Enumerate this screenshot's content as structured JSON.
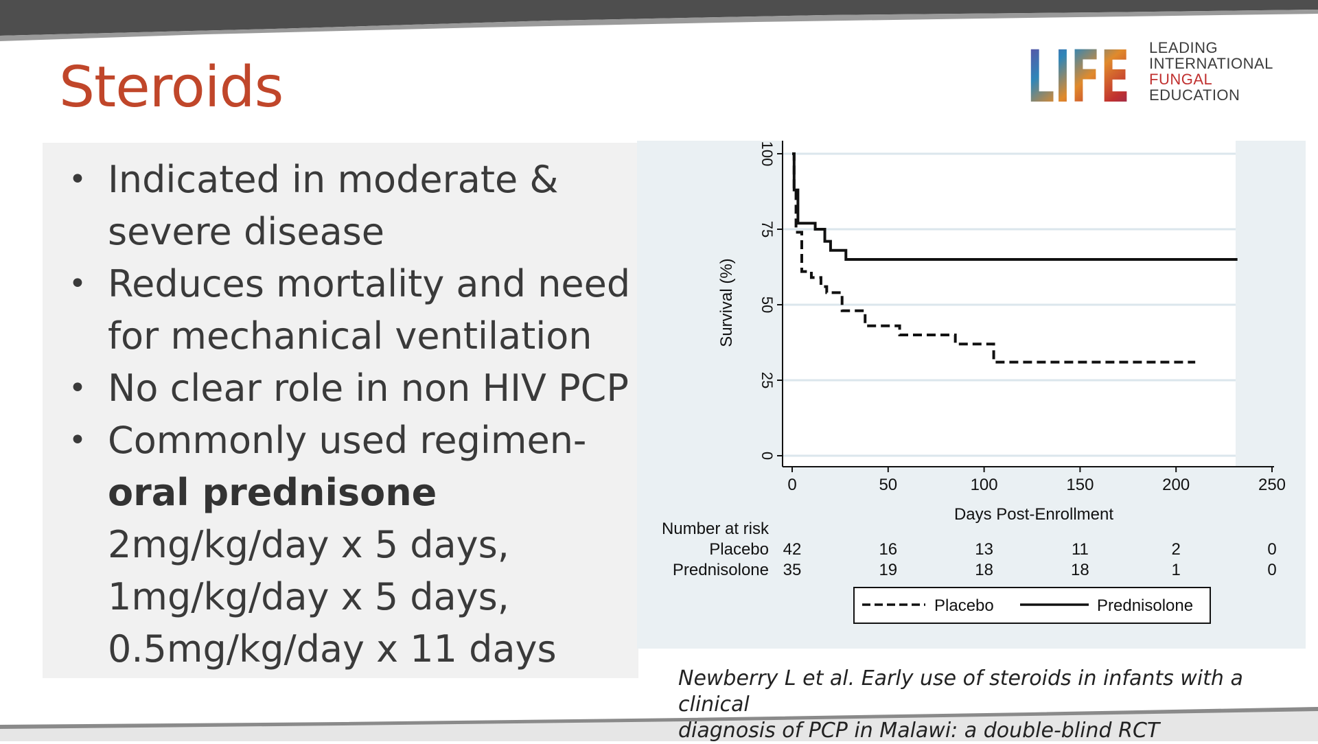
{
  "slide": {
    "title": "Steroids",
    "title_color": "#c0462a"
  },
  "logo": {
    "mark_text": "LIFE",
    "lines": [
      "LEADING",
      "INTERNATIONAL",
      "FUNGAL",
      "EDUCATION"
    ]
  },
  "bullets": [
    {
      "lines": [
        "Indicated in moderate &",
        "severe disease"
      ]
    },
    {
      "lines": [
        "Reduces mortality and need",
        "for mechanical ventilation"
      ]
    },
    {
      "lines": [
        "No clear role in non HIV PCP"
      ]
    },
    {
      "intro": "Commonly used regimen-",
      "bold": "oral prednisone",
      "doses": [
        "2mg/kg/day x 5 days,",
        "1mg/kg/day x 5 days,",
        "0.5mg/kg/day x 11 days"
      ]
    }
  ],
  "citation": {
    "line1": "Newberry L et al. Early use of steroids in infants with a clinical",
    "line2": "diagnosis of PCP  in Malawi: a double-blind RCT"
  },
  "chart_data": {
    "type": "line",
    "subtype": "kaplan-meier",
    "title": "",
    "xlabel": "Days Post-Enrollment",
    "ylabel": "Survival (%)",
    "xlim": [
      0,
      250
    ],
    "ylim": [
      0,
      100
    ],
    "x_ticks": [
      "0",
      "50",
      "100",
      "150",
      "200",
      "250"
    ],
    "y_ticks": [
      "0",
      "25",
      "50",
      "75",
      "100"
    ],
    "grid": true,
    "series": [
      {
        "name": "Placebo",
        "style": "dashed",
        "steps": [
          [
            0,
            100
          ],
          [
            1,
            88
          ],
          [
            2,
            74
          ],
          [
            5,
            61
          ],
          [
            10,
            59
          ],
          [
            15,
            56
          ],
          [
            18,
            54
          ],
          [
            26,
            48
          ],
          [
            38,
            43
          ],
          [
            56,
            40
          ],
          [
            85,
            37
          ],
          [
            105,
            31
          ],
          [
            210,
            31
          ]
        ]
      },
      {
        "name": "Prednisolone",
        "style": "solid",
        "steps": [
          [
            0,
            100
          ],
          [
            1,
            88
          ],
          [
            3,
            77
          ],
          [
            12,
            75
          ],
          [
            17,
            71
          ],
          [
            20,
            68
          ],
          [
            28,
            65
          ],
          [
            232,
            65
          ]
        ]
      }
    ],
    "risk_table": {
      "header": "Number at risk",
      "times": [
        0,
        50,
        100,
        150,
        200,
        250
      ],
      "rows": [
        {
          "label": "Placebo",
          "values": [
            "42",
            "16",
            "13",
            "11",
            "2",
            "0"
          ]
        },
        {
          "label": "Prednisolone",
          "values": [
            "35",
            "19",
            "18",
            "18",
            "1",
            "0"
          ]
        }
      ]
    },
    "legend": {
      "position": "bottom",
      "items": [
        "Placebo",
        "Prednisolone"
      ]
    }
  }
}
